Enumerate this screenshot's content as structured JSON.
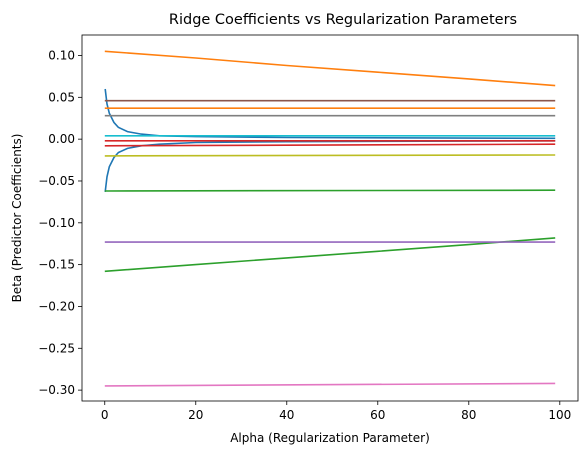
{
  "chart_data": {
    "type": "line",
    "title": "Ridge Coefficients vs Regularization Parameters",
    "xlabel": "Alpha (Regularization Parameter)",
    "ylabel": "Beta (Predictor Coefficients)",
    "xlim": [
      -5,
      104
    ],
    "ylim": [
      -0.313,
      0.1245
    ],
    "xticks": [
      0,
      20,
      40,
      60,
      80,
      100
    ],
    "xtick_labels": [
      "0",
      "20",
      "40",
      "60",
      "80",
      "100"
    ],
    "yticks": [
      0.1,
      0.05,
      0.0,
      -0.05,
      -0.1,
      -0.15,
      -0.2,
      -0.25,
      -0.3
    ],
    "ytick_labels": [
      "0.10",
      "0.05",
      "0.00",
      "−0.05",
      "−0.10",
      "−0.15",
      "−0.20",
      "−0.25",
      "−0.30"
    ],
    "grid": false,
    "series": [
      {
        "color": "#1f77b4",
        "points": [
          [
            0.1,
            0.06
          ],
          [
            0.5,
            0.042
          ],
          [
            1,
            0.031
          ],
          [
            2,
            0.02
          ],
          [
            3,
            0.014
          ],
          [
            5,
            0.009
          ],
          [
            8,
            0.006
          ],
          [
            12,
            0.004
          ],
          [
            20,
            0.003
          ],
          [
            40,
            0.002
          ],
          [
            99,
            0.001
          ]
        ]
      },
      {
        "color": "#1f77b4",
        "points": [
          [
            0.1,
            -0.063
          ],
          [
            0.5,
            -0.045
          ],
          [
            1,
            -0.033
          ],
          [
            2,
            -0.022
          ],
          [
            3,
            -0.016
          ],
          [
            5,
            -0.011
          ],
          [
            8,
            -0.008
          ],
          [
            12,
            -0.006
          ],
          [
            20,
            -0.004
          ],
          [
            40,
            -0.003
          ],
          [
            99,
            -0.002
          ]
        ]
      },
      {
        "color": "#ff7f0e",
        "points": [
          [
            0,
            0.105
          ],
          [
            20,
            0.097
          ],
          [
            40,
            0.088
          ],
          [
            60,
            0.08
          ],
          [
            80,
            0.072
          ],
          [
            99,
            0.064
          ]
        ]
      },
      {
        "color": "#ff7f0e",
        "points": [
          [
            0,
            0.037
          ],
          [
            99,
            0.037
          ]
        ]
      },
      {
        "color": "#2ca02c",
        "points": [
          [
            0,
            -0.158
          ],
          [
            20,
            -0.15
          ],
          [
            40,
            -0.142
          ],
          [
            60,
            -0.134
          ],
          [
            80,
            -0.126
          ],
          [
            99,
            -0.118
          ]
        ]
      },
      {
        "color": "#2ca02c",
        "points": [
          [
            0,
            -0.062
          ],
          [
            99,
            -0.061
          ]
        ]
      },
      {
        "color": "#d62728",
        "points": [
          [
            0,
            -0.008
          ],
          [
            99,
            -0.006
          ]
        ]
      },
      {
        "color": "#d62728",
        "points": [
          [
            0,
            -0.002
          ],
          [
            99,
            -0.002
          ]
        ]
      },
      {
        "color": "#9467bd",
        "points": [
          [
            0,
            -0.123
          ],
          [
            99,
            -0.123
          ]
        ]
      },
      {
        "color": "#8c564b",
        "points": [
          [
            0,
            0.046
          ],
          [
            99,
            0.046
          ]
        ]
      },
      {
        "color": "#e377c2",
        "points": [
          [
            0,
            -0.295
          ],
          [
            99,
            -0.292
          ]
        ]
      },
      {
        "color": "#7f7f7f",
        "points": [
          [
            0,
            0.028
          ],
          [
            99,
            0.028
          ]
        ]
      },
      {
        "color": "#bcbd22",
        "points": [
          [
            0,
            -0.02
          ],
          [
            99,
            -0.019
          ]
        ]
      },
      {
        "color": "#17becf",
        "points": [
          [
            0,
            0.004
          ],
          [
            99,
            0.004
          ]
        ]
      }
    ]
  }
}
